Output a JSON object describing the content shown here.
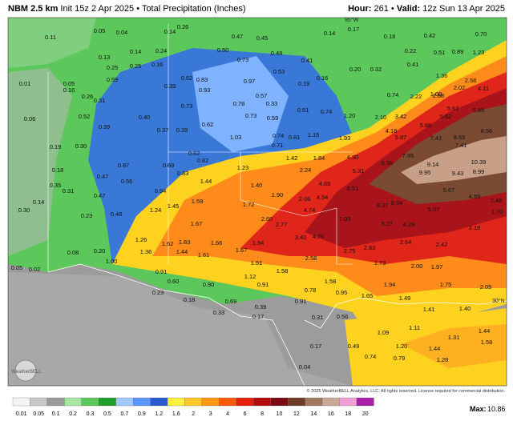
{
  "header": {
    "model": "NBM 2.5 km",
    "init": "Init 15z 2 Apr 2025",
    "separator": "•",
    "product": "Total Precipitation (Inches)",
    "hour_label": "Hour:",
    "hour": "261",
    "valid_label": "Valid:",
    "valid": "12z Sun 13 Apr 2025"
  },
  "map": {
    "labels": [
      "0.11",
      "0.05",
      "0.04",
      "0.14",
      "0.26",
      "0.47",
      "0.45",
      "0.14",
      "0.17",
      "0.18",
      "0.42",
      "0.70",
      "0.13",
      "0.14",
      "0.24",
      "0.50",
      "0.48",
      "0.41",
      "0.22",
      "0.51",
      "0.89",
      "1.23",
      "0.25",
      "0.25",
      "0.16",
      "0.73",
      "0.53",
      "0.20",
      "0.32",
      "0.41",
      "1.36",
      "2.58",
      "0.01",
      "0.05",
      "0.59",
      "0.62",
      "0.83",
      "0.97",
      "0.19",
      "0.16",
      "1.00",
      "2.02",
      "4.11",
      "0.16",
      "0.26",
      "0.39",
      "0.93",
      "0.57",
      "0.74",
      "2.22",
      "2.88",
      "0.31",
      "0.73",
      "0.78",
      "0.33",
      "0.51",
      "0.74",
      "5.63",
      "5.86",
      "0.52",
      "0.40",
      "0.73",
      "0.59",
      "1.20",
      "2.10",
      "3.42",
      "5.62",
      "0.06",
      "0.37",
      "0.62",
      "0.74",
      "0.81",
      "1.15",
      "1.93",
      "4.18",
      "5.86",
      "8.56",
      "0.39",
      "0.39",
      "1.03",
      "5.87",
      "7.41",
      "8.65",
      "0.19",
      "0.30",
      "0.71",
      "7.95",
      "7.41",
      "0.62",
      "0.82",
      "1.42",
      "1.84",
      "4.30",
      "6.50",
      "9.14",
      "10.39",
      "0.87",
      "0.69",
      "1.23",
      "2.24",
      "5.31",
      "9.95",
      "9.43",
      "8.99",
      "0.18",
      "0.47",
      "0.56",
      "0.83",
      "1.44",
      "1.40",
      "1.90",
      "4.66",
      "6.51",
      "0.35",
      "0.31",
      "0.47",
      "0.94",
      "2.06",
      "4.94",
      "8.54",
      "5.67",
      "4.59",
      "2.48",
      "0.30",
      "0.14",
      "0.23",
      "0.48",
      "1.24",
      "1.45",
      "1.59",
      "1.72",
      "4.74",
      "8.37",
      "5.07",
      "1.70",
      "1.67",
      "2.60",
      "2.77",
      "7.03",
      "5.27",
      "4.28",
      "2.18",
      "1.26",
      "1.62",
      "1.83",
      "1.66",
      "1.94",
      "3.40",
      "4.70",
      "2.64",
      "0.08",
      "0.20",
      "1.36",
      "1.44",
      "1.61",
      "1.67",
      "2.58",
      "2.75",
      "2.83",
      "2.42",
      "1.51",
      "1.73",
      "2.00",
      "1.97",
      "0.05",
      "0.02",
      "1.00",
      "0.91",
      "1.58",
      "1.58",
      "0.60",
      "1.12",
      "1.94",
      "1.75",
      "2.05",
      "0.90",
      "0.91",
      "0.78",
      "0.95",
      "1.65",
      "1.49",
      "0.23",
      "0.18",
      "0.69",
      "0.39",
      "0.91",
      "1.41",
      "1.40",
      "0.33",
      "0.17",
      "0.31",
      "0.56",
      "1.11",
      "1.44",
      "1.09",
      "1.31",
      "1.58",
      "0.17",
      "0.49",
      "1.20",
      "1.44",
      "0.04",
      "0.74",
      "0.79",
      "1.28"
    ],
    "grid_labels": [
      "95°W",
      "30°N"
    ],
    "logo": "WeatherBELL",
    "copyright": "© 2025 WeatherBELL Analytics, LLC. All rights reserved. License required for commercial distribution."
  },
  "legend": {
    "labels": [
      "0.01",
      "0.05",
      "0.1",
      "0.2",
      "0.3",
      "0.5",
      "0.7",
      "0.9",
      "1.2",
      "1.6",
      "2",
      "3",
      "4",
      "6",
      "8",
      "10",
      "12",
      "14",
      "16",
      "18",
      "20"
    ],
    "colors": [
      "#f4f4f4",
      "#c8c8c8",
      "#9a9a9a",
      "#a6e6a0",
      "#5cc85c",
      "#1e9e2a",
      "#a0c8ff",
      "#5a96ff",
      "#2a5ad2",
      "#fff03c",
      "#ffc828",
      "#ff9614",
      "#ff5a0a",
      "#e61e0a",
      "#b40a0a",
      "#7a0a14",
      "#6e3c28",
      "#a07860",
      "#c8a896",
      "#f0a0d2",
      "#aa1eaa"
    ],
    "max_label": "Max:",
    "max": "10.86"
  }
}
